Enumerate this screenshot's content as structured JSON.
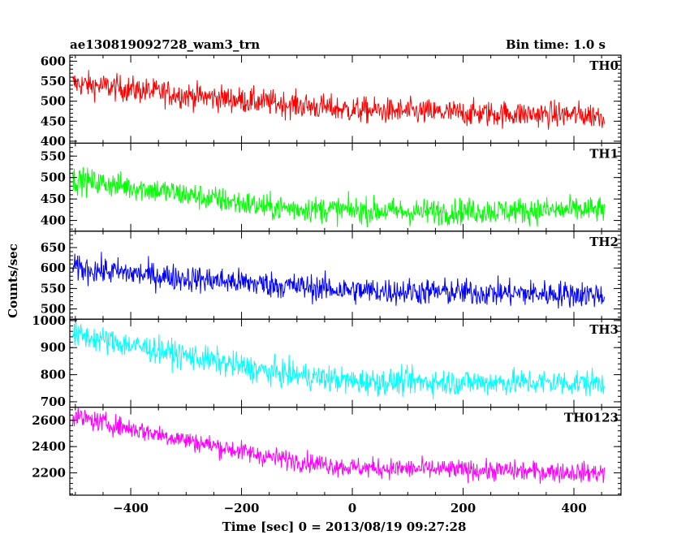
{
  "header": {
    "title": "ae130819092728_wam3_trn",
    "bin_time": "Bin time: 1.0 s"
  },
  "chart_data": {
    "type": "line",
    "xlabel": "Time [sec] 0 = 2013/08/19 09:27:28",
    "ylabel": "Counts/sec",
    "xlim": [
      -510,
      485
    ],
    "x_ticks": [
      -400,
      -200,
      0,
      200,
      400
    ],
    "x_tick_labels": [
      "−400",
      "−200",
      "0",
      "200",
      "400"
    ],
    "x_range_data": [
      -505,
      455
    ],
    "panels": [
      {
        "name": "TH0",
        "color": "#ff0000",
        "ylim": [
          395,
          615
        ],
        "y_ticks": [
          400,
          450,
          500,
          550,
          600
        ],
        "y_tick_labels": [
          "400",
          "450",
          "500",
          "550",
          "600"
        ],
        "trend": [
          [
            -505,
            545
          ],
          [
            -300,
            515
          ],
          [
            0,
            478
          ],
          [
            200,
            470
          ],
          [
            455,
            465
          ]
        ],
        "noise": 30
      },
      {
        "name": "TH1",
        "color": "#00ff00",
        "ylim": [
          375,
          580
        ],
        "y_ticks": [
          400,
          450,
          500,
          550
        ],
        "y_tick_labels": [
          "400",
          "450",
          "500",
          "550"
        ],
        "trend": [
          [
            -505,
            495
          ],
          [
            -350,
            470
          ],
          [
            -150,
            430
          ],
          [
            100,
            420
          ],
          [
            455,
            425
          ]
        ],
        "noise": 28
      },
      {
        "name": "TH2",
        "color": "#0000ff",
        "ylim": [
          475,
          690
        ],
        "y_ticks": [
          500,
          550,
          600,
          650
        ],
        "y_tick_labels": [
          "500",
          "550",
          "600",
          "650"
        ],
        "trend": [
          [
            -505,
            600
          ],
          [
            -300,
            575
          ],
          [
            0,
            545
          ],
          [
            455,
            535
          ]
        ],
        "noise": 30
      },
      {
        "name": "TH3",
        "color": "#00ffff",
        "ylim": [
          680,
          1005
        ],
        "y_ticks": [
          700,
          800,
          900,
          1000
        ],
        "y_tick_labels": [
          "700",
          "800",
          "900",
          "1000"
        ],
        "trend": [
          [
            -505,
            950
          ],
          [
            -300,
            870
          ],
          [
            -150,
            810
          ],
          [
            0,
            775
          ],
          [
            455,
            770
          ]
        ],
        "noise": 45
      },
      {
        "name": "TH0123",
        "color": "#ff00ff",
        "ylim": [
          2030,
          2700
        ],
        "y_ticks": [
          2200,
          2400,
          2600
        ],
        "y_tick_labels": [
          "2200",
          "2400",
          "2600"
        ],
        "trend": [
          [
            -505,
            2630
          ],
          [
            -300,
            2450
          ],
          [
            -150,
            2320
          ],
          [
            0,
            2240
          ],
          [
            455,
            2200
          ]
        ],
        "noise": 70
      }
    ]
  }
}
